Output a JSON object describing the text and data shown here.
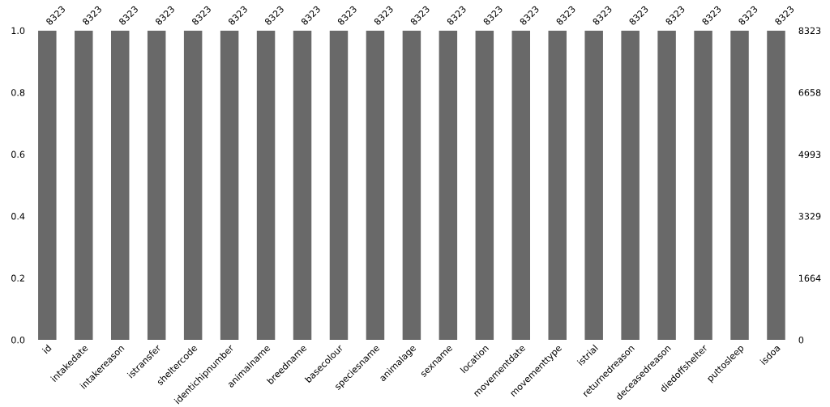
{
  "chart_data": {
    "type": "bar",
    "categories": [
      "id",
      "intakedate",
      "intakereason",
      "istransfer",
      "sheltercode",
      "identichipnumber",
      "animalname",
      "breedname",
      "basecolour",
      "speciesname",
      "animalage",
      "sexname",
      "location",
      "movementdate",
      "movementtype",
      "istrial",
      "returnedreason",
      "deceasedreason",
      "diedoffshelter",
      "puttosleep",
      "isdoa"
    ],
    "series": [
      {
        "color": "#696969",
        "axis": "y2",
        "values": [
          8323,
          8323,
          8323,
          8323,
          8323,
          8323,
          8323,
          8323,
          8323,
          8323,
          8323,
          8323,
          8323,
          8323,
          8323,
          8323,
          8323,
          8323,
          8323,
          8323,
          8323
        ]
      }
    ],
    "data_labels": true,
    "ylim": [
      0,
      1.0
    ],
    "yticks": [
      {
        "value": 0,
        "label": "0.0"
      },
      {
        "value": 0.2,
        "label": "0.2"
      },
      {
        "value": 0.4,
        "label": "0.4"
      },
      {
        "value": 0.6,
        "label": "0.6"
      },
      {
        "value": 0.8,
        "label": "0.8"
      },
      {
        "value": 1.0,
        "label": "1.0"
      }
    ],
    "y2lim": [
      0,
      8323
    ],
    "y2ticks": [
      0,
      1664,
      3329,
      4993,
      6658,
      8323
    ],
    "grid": false,
    "legend": false
  }
}
